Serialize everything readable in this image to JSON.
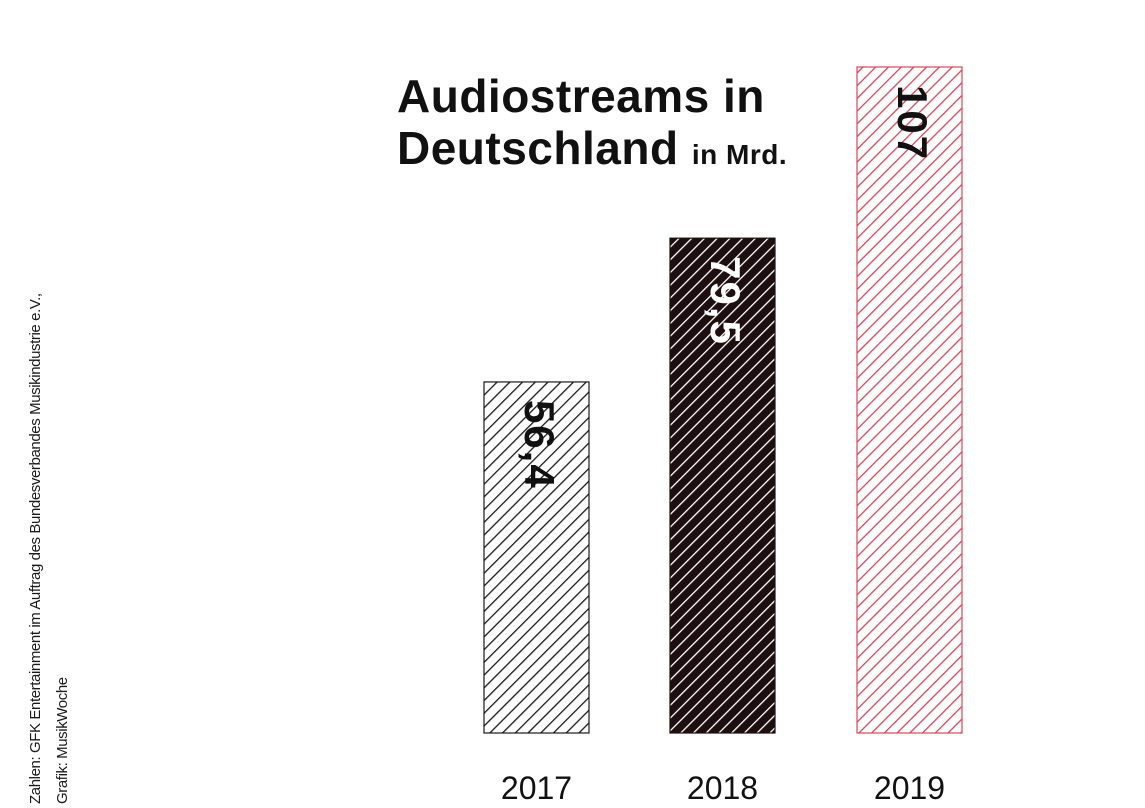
{
  "source": {
    "line1": "Zahlen: GFK Entertainment im Auftrag des Bundesverbandes Musikindustrie e.V.,",
    "line2": "Grafik: MusikWoche"
  },
  "chart_data": {
    "type": "bar",
    "title_line1": "Audiostreams in",
    "title_line2": "Deutschland",
    "unit": "in Mrd.",
    "categories": [
      "2017",
      "2018",
      "2019"
    ],
    "values": [
      56.4,
      79.5,
      107
    ],
    "value_labels": [
      "56,4",
      "79,5",
      "107"
    ],
    "ylim": [
      0,
      107
    ],
    "grid": false,
    "bar_colors": [
      "#1a1a1a",
      "#1d0f10",
      "#d9475a"
    ],
    "bar_fills": [
      "#ffffff",
      "#1d0f10",
      "#ffffff"
    ],
    "stripe_colors": [
      "#1a1a1a",
      "#ffffff",
      "#d9475a"
    ],
    "label_colors": [
      "#111111",
      "#ffffff",
      "#111111"
    ]
  }
}
